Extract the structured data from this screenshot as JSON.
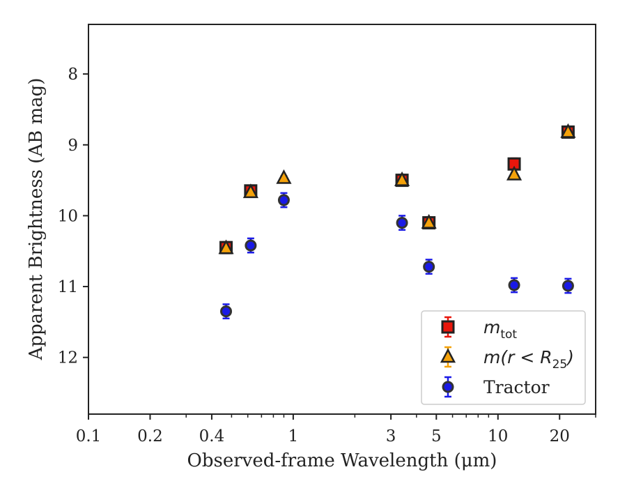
{
  "chart_data": {
    "type": "scatter",
    "xlabel": "Observed-frame Wavelength (μm)",
    "ylabel": "Apparent Brightness (AB mag)",
    "xscale": "log",
    "xlim": [
      0.1,
      30
    ],
    "ylim": [
      12.8,
      7.3
    ],
    "y_inverted": true,
    "grid": false,
    "legend_position": "lower-right",
    "x_ticks": [
      {
        "value": 0.1,
        "label": "0.1"
      },
      {
        "value": 0.2,
        "label": "0.2"
      },
      {
        "value": 0.4,
        "label": "0.4"
      },
      {
        "value": 1,
        "label": "1"
      },
      {
        "value": 3,
        "label": "3"
      },
      {
        "value": 5,
        "label": "5"
      },
      {
        "value": 10,
        "label": "10"
      },
      {
        "value": 20,
        "label": "20"
      }
    ],
    "y_ticks": [
      {
        "value": 8,
        "label": "8"
      },
      {
        "value": 9,
        "label": "9"
      },
      {
        "value": 10,
        "label": "10"
      },
      {
        "value": 11,
        "label": "11"
      },
      {
        "value": 12,
        "label": "12"
      }
    ],
    "series": [
      {
        "name": "m_tot",
        "legend_main": "m",
        "legend_sub": "tot",
        "marker": "square",
        "color": "#e8160c",
        "edgecolor": "#222222",
        "points": [
          {
            "x": 0.47,
            "y": 10.45,
            "err": 0.08
          },
          {
            "x": 0.62,
            "y": 9.65,
            "err": 0.08
          },
          {
            "x": 3.4,
            "y": 9.5,
            "err": 0.08
          },
          {
            "x": 4.6,
            "y": 10.1,
            "err": 0.08
          },
          {
            "x": 12,
            "y": 9.27,
            "err": 0.08
          },
          {
            "x": 22,
            "y": 8.82,
            "err": 0.08
          }
        ]
      },
      {
        "name": "m(r < R25)",
        "legend_main": "m(r < R",
        "legend_sub": "25",
        "legend_tail": ")",
        "marker": "triangle",
        "color": "#f5a20a",
        "edgecolor": "#222222",
        "points": [
          {
            "x": 0.47,
            "y": 10.46,
            "err": 0.03
          },
          {
            "x": 0.62,
            "y": 9.67,
            "err": 0.03
          },
          {
            "x": 0.9,
            "y": 9.47,
            "err": 0.03
          },
          {
            "x": 3.4,
            "y": 9.5,
            "err": 0.03
          },
          {
            "x": 4.6,
            "y": 10.1,
            "err": 0.03
          },
          {
            "x": 12,
            "y": 9.42,
            "err": 0.03
          },
          {
            "x": 22,
            "y": 8.82,
            "err": 0.03
          }
        ]
      },
      {
        "name": "Tractor",
        "legend_main": "Tractor",
        "marker": "circle",
        "color": "#1a1ae6",
        "edgecolor": "#333333",
        "points": [
          {
            "x": 0.47,
            "y": 11.35,
            "err": 0.1
          },
          {
            "x": 0.62,
            "y": 10.42,
            "err": 0.1
          },
          {
            "x": 0.9,
            "y": 9.78,
            "err": 0.1
          },
          {
            "x": 3.4,
            "y": 10.1,
            "err": 0.1
          },
          {
            "x": 4.6,
            "y": 10.72,
            "err": 0.1
          },
          {
            "x": 12,
            "y": 10.98,
            "err": 0.1
          },
          {
            "x": 22,
            "y": 10.99,
            "err": 0.1
          }
        ]
      }
    ]
  }
}
